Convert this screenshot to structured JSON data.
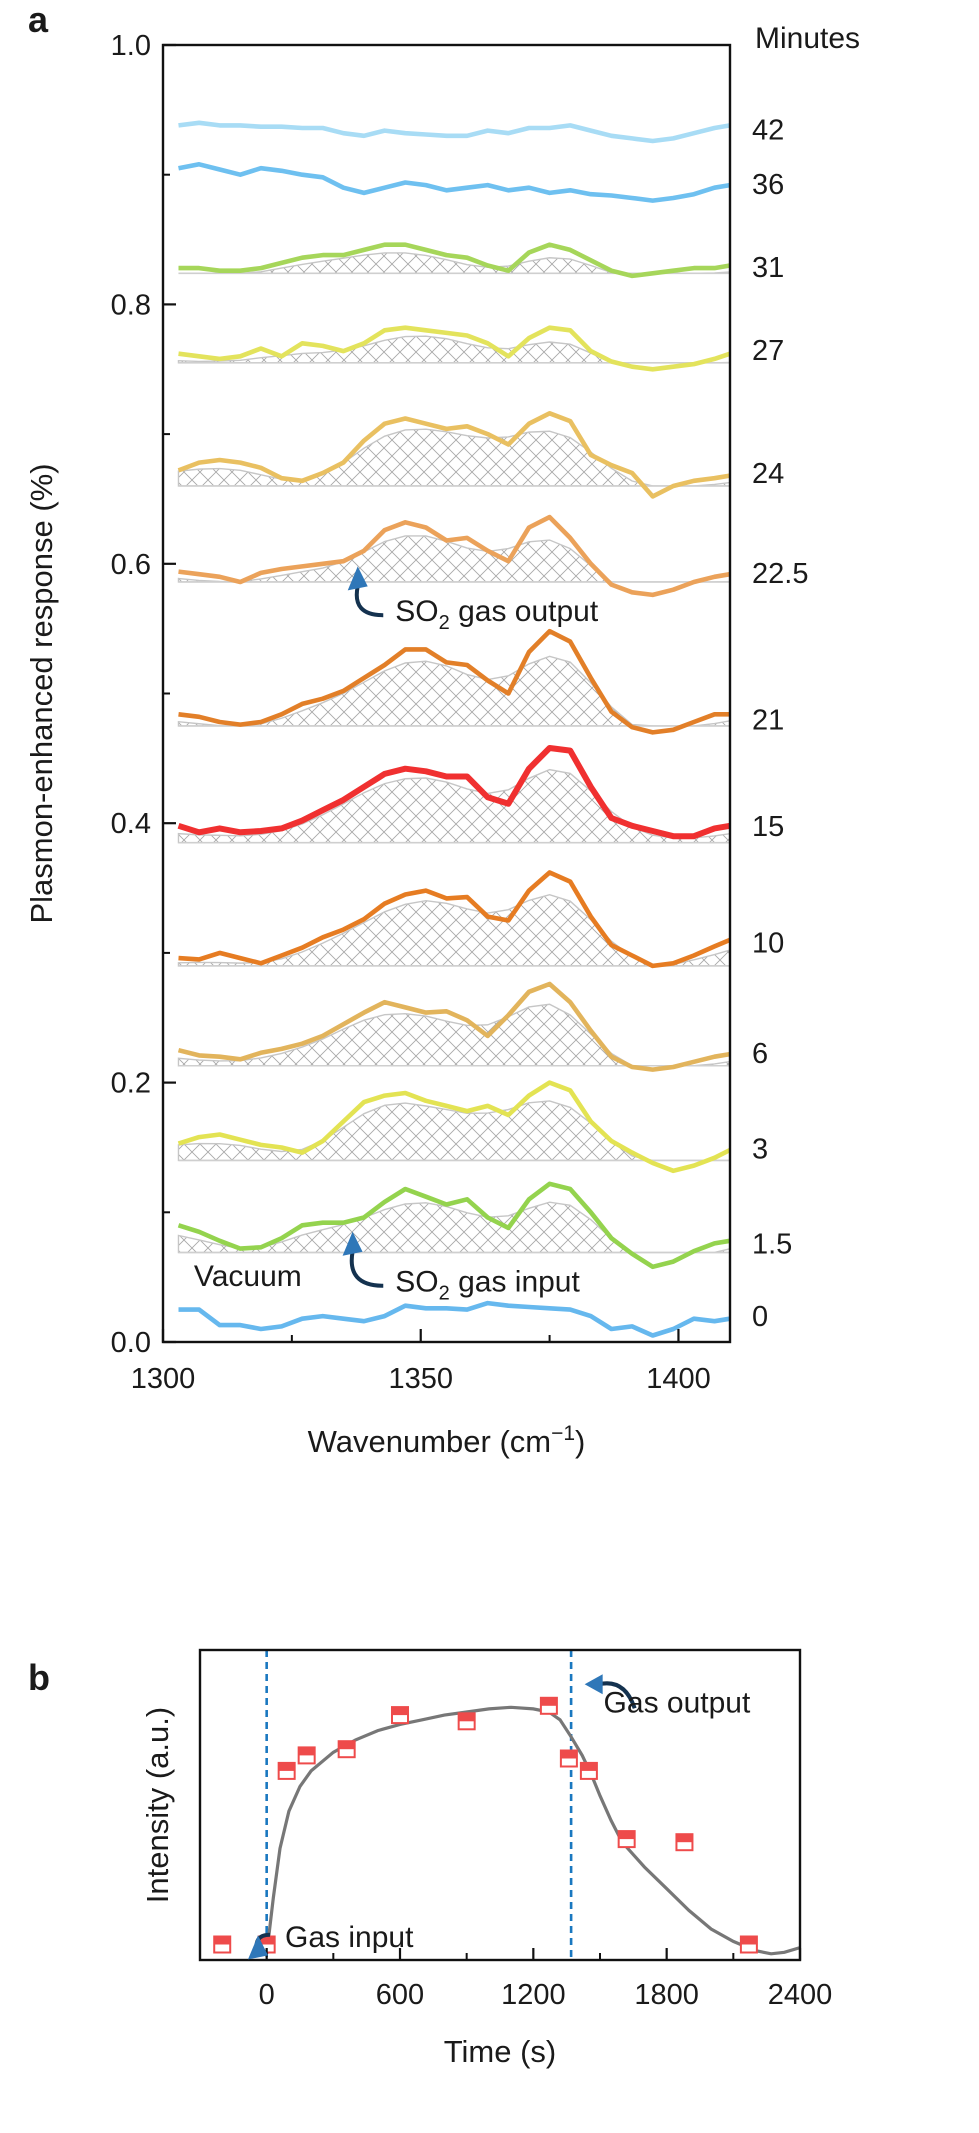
{
  "panels": {
    "a": {
      "label": "a"
    },
    "b": {
      "label": "b"
    }
  },
  "chart_data": [
    {
      "type": "line",
      "panel": "a",
      "xlabel_main": "Wavenumber (cm",
      "xlabel_sup": "−1",
      "xlabel_end": ")",
      "ylabel": "Plasmon-enhanced response (%)",
      "xlim": [
        1300,
        1410
      ],
      "ylim": [
        0.0,
        1.0
      ],
      "xticks": [
        1300,
        1350,
        1400
      ],
      "xtick_labels": [
        "1300",
        "1350",
        "1400"
      ],
      "yticks": [
        0.0,
        0.2,
        0.4,
        0.6,
        0.8,
        1.0
      ],
      "ytick_labels": [
        "0.0",
        "0.2",
        "0.4",
        "0.6",
        "0.8",
        "1.0"
      ],
      "right_header": "Minutes",
      "annotations": [
        {
          "text": "Vacuum",
          "x": 1306,
          "y": 0.043
        },
        {
          "main": "SO",
          "sub": "2",
          "rest": " gas input",
          "x": 1347,
          "y": 0.048,
          "arrow_to": [
            1336,
            0.085
          ]
        },
        {
          "main": "SO",
          "sub": "2",
          "rest": " gas output",
          "x": 1347,
          "y": 0.565,
          "arrow_to": [
            1337,
            0.598
          ]
        }
      ],
      "x": [
        1303,
        1307,
        1311,
        1315,
        1319,
        1323,
        1327,
        1331,
        1335,
        1339,
        1343,
        1347,
        1351,
        1355,
        1359,
        1363,
        1367,
        1371,
        1375,
        1379,
        1383,
        1387,
        1391,
        1395,
        1399,
        1403,
        1407,
        1410
      ],
      "series": [
        {
          "name": "0",
          "color": "#66b8ee",
          "baseline": 0.0,
          "hatch": false,
          "values": [
            0.025,
            0.025,
            0.013,
            0.013,
            0.01,
            0.012,
            0.018,
            0.02,
            0.018,
            0.016,
            0.02,
            0.028,
            0.026,
            0.026,
            0.025,
            0.03,
            0.028,
            0.027,
            0.026,
            0.025,
            0.02,
            0.01,
            0.012,
            0.005,
            0.01,
            0.018,
            0.016,
            0.018
          ]
        },
        {
          "name": "1.5",
          "color": "#94d34e",
          "baseline": 0.069,
          "hatch": true,
          "values": [
            0.09,
            0.085,
            0.078,
            0.072,
            0.073,
            0.08,
            0.09,
            0.092,
            0.092,
            0.096,
            0.108,
            0.118,
            0.112,
            0.106,
            0.11,
            0.096,
            0.088,
            0.11,
            0.122,
            0.118,
            0.1,
            0.08,
            0.068,
            0.058,
            0.062,
            0.07,
            0.076,
            0.078
          ]
        },
        {
          "name": "3",
          "color": "#e3e353",
          "baseline": 0.14,
          "hatch": true,
          "values": [
            0.153,
            0.158,
            0.16,
            0.156,
            0.152,
            0.15,
            0.146,
            0.155,
            0.17,
            0.185,
            0.19,
            0.192,
            0.186,
            0.182,
            0.178,
            0.182,
            0.175,
            0.19,
            0.2,
            0.194,
            0.17,
            0.155,
            0.146,
            0.138,
            0.132,
            0.136,
            0.142,
            0.148
          ]
        },
        {
          "name": "6",
          "color": "#e2b45c",
          "baseline": 0.213,
          "hatch": true,
          "values": [
            0.225,
            0.221,
            0.22,
            0.218,
            0.223,
            0.226,
            0.23,
            0.236,
            0.245,
            0.254,
            0.262,
            0.258,
            0.254,
            0.255,
            0.248,
            0.236,
            0.252,
            0.27,
            0.276,
            0.262,
            0.24,
            0.22,
            0.212,
            0.21,
            0.212,
            0.216,
            0.22,
            0.222
          ]
        },
        {
          "name": "10",
          "color": "#e67c22",
          "baseline": 0.29,
          "hatch": true,
          "values": [
            0.296,
            0.295,
            0.3,
            0.296,
            0.292,
            0.298,
            0.304,
            0.312,
            0.318,
            0.326,
            0.338,
            0.345,
            0.348,
            0.342,
            0.343,
            0.328,
            0.325,
            0.348,
            0.362,
            0.355,
            0.328,
            0.306,
            0.298,
            0.29,
            0.292,
            0.298,
            0.305,
            0.31
          ]
        },
        {
          "name": "15",
          "color": "#f03030",
          "baseline": 0.385,
          "hatch": true,
          "values": [
            0.398,
            0.393,
            0.396,
            0.393,
            0.394,
            0.396,
            0.402,
            0.41,
            0.418,
            0.428,
            0.438,
            0.442,
            0.44,
            0.436,
            0.436,
            0.42,
            0.415,
            0.442,
            0.458,
            0.456,
            0.428,
            0.404,
            0.398,
            0.394,
            0.39,
            0.39,
            0.396,
            0.398
          ]
        },
        {
          "name": "21",
          "color": "#e27f28",
          "baseline": 0.475,
          "hatch": true,
          "values": [
            0.484,
            0.482,
            0.478,
            0.476,
            0.478,
            0.484,
            0.492,
            0.496,
            0.502,
            0.512,
            0.522,
            0.534,
            0.534,
            0.524,
            0.522,
            0.51,
            0.5,
            0.532,
            0.548,
            0.54,
            0.512,
            0.486,
            0.474,
            0.47,
            0.472,
            0.478,
            0.484,
            0.484
          ]
        },
        {
          "name": "22.5",
          "color": "#eba25a",
          "baseline": 0.586,
          "hatch": true,
          "values": [
            0.594,
            0.592,
            0.59,
            0.586,
            0.593,
            0.596,
            0.598,
            0.6,
            0.602,
            0.61,
            0.626,
            0.632,
            0.628,
            0.618,
            0.62,
            0.61,
            0.602,
            0.628,
            0.636,
            0.62,
            0.6,
            0.584,
            0.578,
            0.576,
            0.58,
            0.586,
            0.59,
            0.592
          ]
        },
        {
          "name": "24",
          "color": "#e9c061",
          "baseline": 0.66,
          "hatch": true,
          "values": [
            0.672,
            0.678,
            0.68,
            0.678,
            0.674,
            0.666,
            0.664,
            0.67,
            0.678,
            0.695,
            0.708,
            0.712,
            0.708,
            0.704,
            0.706,
            0.7,
            0.692,
            0.708,
            0.716,
            0.71,
            0.684,
            0.676,
            0.67,
            0.652,
            0.66,
            0.664,
            0.666,
            0.668
          ]
        },
        {
          "name": "27",
          "color": "#e3e35c",
          "baseline": 0.755,
          "hatch": true,
          "values": [
            0.762,
            0.76,
            0.758,
            0.76,
            0.766,
            0.76,
            0.77,
            0.768,
            0.764,
            0.77,
            0.78,
            0.782,
            0.78,
            0.778,
            0.776,
            0.77,
            0.76,
            0.774,
            0.782,
            0.78,
            0.764,
            0.756,
            0.752,
            0.75,
            0.752,
            0.754,
            0.758,
            0.762
          ]
        },
        {
          "name": "31",
          "color": "#a6d65a",
          "baseline": 0.824,
          "hatch": true,
          "values": [
            0.828,
            0.828,
            0.826,
            0.826,
            0.828,
            0.832,
            0.836,
            0.838,
            0.838,
            0.842,
            0.846,
            0.846,
            0.842,
            0.838,
            0.836,
            0.83,
            0.826,
            0.84,
            0.846,
            0.842,
            0.834,
            0.826,
            0.822,
            0.824,
            0.826,
            0.828,
            0.828,
            0.83
          ]
        },
        {
          "name": "36",
          "color": "#6ec0f0",
          "baseline": 0.0,
          "hatch": false,
          "values": [
            0.905,
            0.908,
            0.904,
            0.9,
            0.905,
            0.903,
            0.9,
            0.898,
            0.89,
            0.886,
            0.89,
            0.894,
            0.892,
            0.888,
            0.89,
            0.892,
            0.888,
            0.89,
            0.886,
            0.888,
            0.885,
            0.884,
            0.882,
            0.88,
            0.882,
            0.885,
            0.89,
            0.892
          ]
        },
        {
          "name": "42",
          "color": "#a8dcf5",
          "baseline": 0.0,
          "hatch": false,
          "values": [
            0.938,
            0.94,
            0.938,
            0.938,
            0.937,
            0.937,
            0.936,
            0.936,
            0.932,
            0.93,
            0.934,
            0.932,
            0.931,
            0.93,
            0.93,
            0.934,
            0.932,
            0.936,
            0.936,
            0.938,
            0.934,
            0.93,
            0.928,
            0.926,
            0.928,
            0.932,
            0.936,
            0.938
          ]
        }
      ],
      "minute_labels": [
        {
          "text": "42",
          "y": 0.935
        },
        {
          "text": "36",
          "y": 0.893
        },
        {
          "text": "31",
          "y": 0.829
        },
        {
          "text": "27",
          "y": 0.765
        },
        {
          "text": "24",
          "y": 0.67
        },
        {
          "text": "22.5",
          "y": 0.593
        },
        {
          "text": "21",
          "y": 0.48
        },
        {
          "text": "15",
          "y": 0.398
        },
        {
          "text": "10",
          "y": 0.308
        },
        {
          "text": "6",
          "y": 0.223
        },
        {
          "text": "3",
          "y": 0.149
        },
        {
          "text": "1.5",
          "y": 0.076
        },
        {
          "text": "0",
          "y": 0.02
        }
      ]
    },
    {
      "type": "scatter",
      "panel": "b",
      "xlabel": "Time (s)",
      "ylabel": "Intensity (a.u.)",
      "xlim": [
        -300,
        2400
      ],
      "ylim": [
        0,
        1
      ],
      "xticks": [
        0,
        600,
        1200,
        1800,
        2400
      ],
      "xtick_labels": [
        "0",
        "600",
        "1200",
        "1800",
        "2400"
      ],
      "marker_color": "#ee4b4b",
      "fit_color": "#777777",
      "vlines": [
        0,
        1370
      ],
      "vline_color": "#1a78c0",
      "annotations": [
        {
          "text": "Gas input",
          "x": 420,
          "y": 0.075,
          "arrow_to": [
            60,
            0.06
          ]
        },
        {
          "text": "Gas output",
          "x": 1480,
          "y": 0.83,
          "arrow_to": [
            1395,
            0.87
          ]
        }
      ],
      "points": {
        "x": [
          -200,
          0,
          90,
          180,
          360,
          600,
          900,
          1270,
          1360,
          1450,
          1620,
          1880,
          2170
        ],
        "y": [
          0.05,
          0.05,
          0.61,
          0.66,
          0.68,
          0.79,
          0.77,
          0.82,
          0.65,
          0.61,
          0.39,
          0.38,
          0.05
        ]
      },
      "fit": {
        "x": [
          0,
          30,
          60,
          100,
          150,
          200,
          300,
          400,
          500,
          600,
          700,
          800,
          900,
          1000,
          1100,
          1200,
          1270,
          1320,
          1370,
          1420,
          1460,
          1500,
          1550,
          1600,
          1700,
          1800,
          1900,
          2000,
          2100,
          2200,
          2270,
          2330,
          2400
        ],
        "y": [
          0.02,
          0.2,
          0.36,
          0.48,
          0.56,
          0.61,
          0.67,
          0.71,
          0.74,
          0.76,
          0.775,
          0.79,
          0.8,
          0.81,
          0.815,
          0.81,
          0.8,
          0.775,
          0.72,
          0.66,
          0.6,
          0.53,
          0.45,
          0.38,
          0.3,
          0.23,
          0.16,
          0.1,
          0.06,
          0.03,
          0.02,
          0.025,
          0.04
        ]
      }
    }
  ]
}
